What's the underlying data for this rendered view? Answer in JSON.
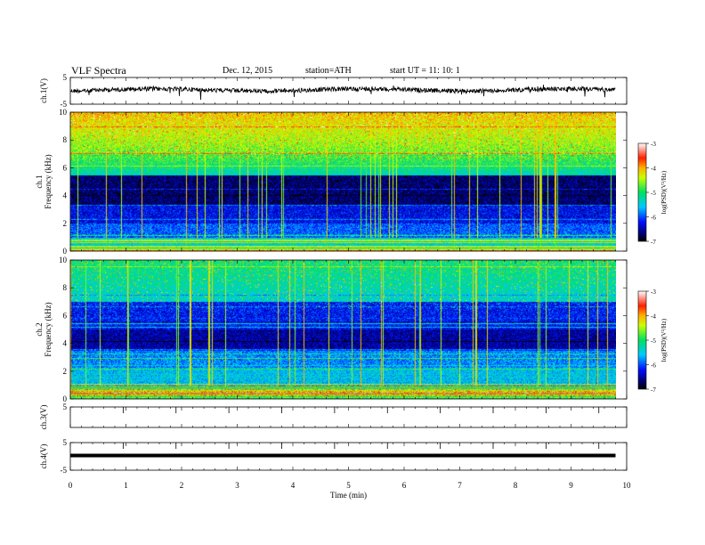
{
  "header": {
    "title": "VLF  Spectra",
    "date": "Dec. 12, 2015",
    "station": "station=ATH",
    "start": "start  UT  =    11: 10: 1"
  },
  "chart_data": {
    "type": "heatmap",
    "xlabel": "Time  (min)",
    "xlim": [
      0,
      10
    ],
    "x_ticks": [
      "0",
      "1",
      "2",
      "3",
      "4",
      "5",
      "6",
      "7",
      "8",
      "9",
      "10"
    ],
    "panels": [
      {
        "id": "ch1v",
        "ylabel": "ch.1(V)",
        "ylim": [
          -5,
          5
        ],
        "y_ticks": [
          "5",
          "-5"
        ],
        "kind": "waveform"
      },
      {
        "id": "ch1spec",
        "ylabel": "ch.1",
        "ylabel2": "Frequency  (kHz)",
        "ylim": [
          0,
          10
        ],
        "y_ticks": [
          "0",
          "2",
          "4",
          "6",
          "8",
          "10"
        ],
        "kind": "spectrogram"
      },
      {
        "id": "ch2spec",
        "ylabel": "ch.2",
        "ylabel2": "Frequency  (kHz)",
        "ylim": [
          0,
          10
        ],
        "y_ticks": [
          "0",
          "2",
          "4",
          "6",
          "8",
          "10"
        ],
        "kind": "spectrogram"
      },
      {
        "id": "ch3v",
        "ylabel": "ch.3(V)",
        "ylim": [
          -5,
          5
        ],
        "y_ticks": [
          "5"
        ],
        "kind": "flat"
      },
      {
        "id": "ch4v",
        "ylabel": "ch.4(V)",
        "ylim": [
          -5,
          5
        ],
        "y_ticks": [
          "5",
          "-5"
        ],
        "kind": "flat"
      }
    ],
    "colorbar": {
      "label": "log(PSD)(V²/Hz)",
      "range": [
        -7,
        -3
      ],
      "ticks": [
        "-3",
        "-4",
        "-5",
        "-6",
        "-7"
      ]
    },
    "data_end_min": 9.8
  }
}
